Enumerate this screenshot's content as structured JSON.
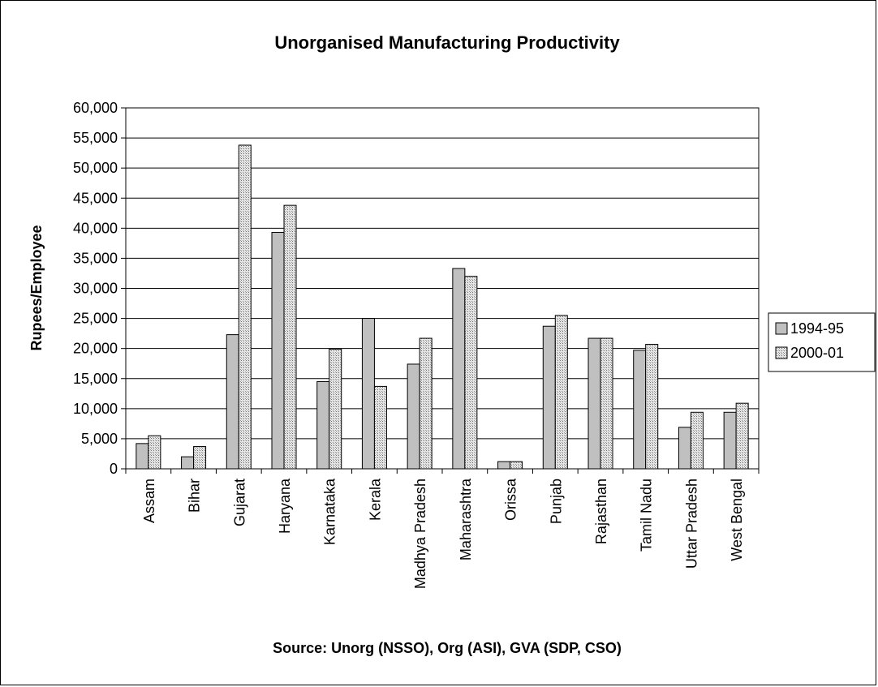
{
  "chart_data": {
    "type": "bar",
    "title": "Unorganised Manufacturing Productivity",
    "ylabel": "Rupees/Employee",
    "xlabel": "Source: Unorg (NSSO), Org (ASI), GVA (SDP, CSO)",
    "ylim": [
      0,
      60000
    ],
    "yticks": [
      "0",
      "5,000",
      "10,000",
      "15,000",
      "20,000",
      "25,000",
      "30,000",
      "35,000",
      "40,000",
      "45,000",
      "50,000",
      "55,000",
      "60,000"
    ],
    "categories": [
      "Assam",
      "Bihar",
      "Gujarat",
      "Haryana",
      "Karnataka",
      "Kerala",
      "Madhya Pradesh",
      "Maharashtra",
      "Orissa",
      "Punjab",
      "Rajasthan",
      "Tamil Nadu",
      "Uttar Pradesh",
      "West Bengal"
    ],
    "series": [
      {
        "name": "1994-95",
        "color": "#c0c0c0",
        "values": [
          4200,
          2000,
          22300,
          39300,
          14500,
          25000,
          17400,
          33300,
          1200,
          23700,
          21700,
          19700,
          6900,
          9400
        ]
      },
      {
        "name": "2000-01",
        "color": "#d8d8d8",
        "values": [
          5500,
          3700,
          53800,
          43800,
          19900,
          13700,
          21700,
          32000,
          1200,
          25500,
          21700,
          20700,
          9400,
          10900
        ]
      }
    ],
    "grid": true,
    "legend": "right"
  }
}
